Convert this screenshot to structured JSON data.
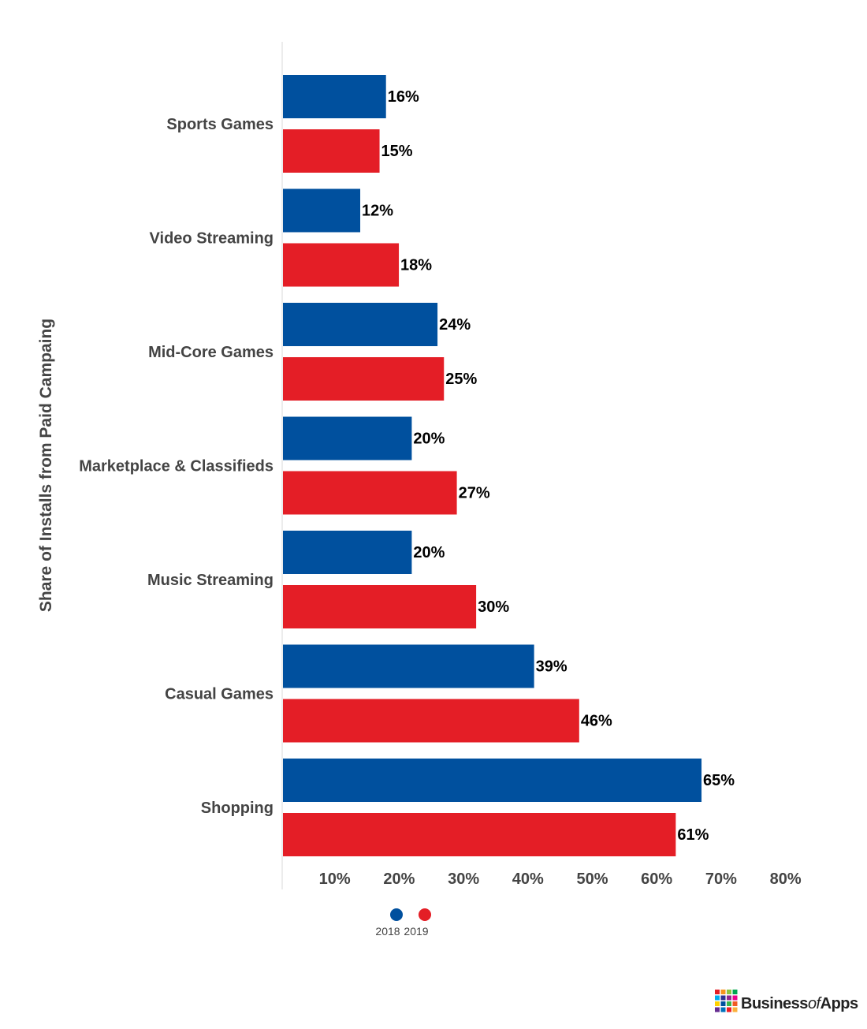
{
  "chart_data": {
    "type": "bar",
    "orientation": "horizontal",
    "categories": [
      "Sports Games",
      "Video Streaming",
      "Mid-Core Games",
      "Marketplace & Classifieds",
      "Music Streaming",
      "Casual Games",
      "Shopping"
    ],
    "series": [
      {
        "name": "2018",
        "color": "#00509e",
        "values": [
          16,
          12,
          24,
          20,
          20,
          39,
          65
        ]
      },
      {
        "name": "2019",
        "color": "#e41e26",
        "values": [
          15,
          18,
          25,
          27,
          30,
          46,
          61
        ]
      }
    ],
    "value_labels": {
      "2018": [
        "16%",
        "12%",
        "24%",
        "20%",
        "20%",
        "39%",
        "65%"
      ],
      "2019": [
        "15%",
        "18%",
        "25%",
        "27%",
        "30%",
        "46%",
        "61%"
      ]
    },
    "ylabel": "Share of Installs from Paid Campaing",
    "xlabel": "",
    "xlim": [
      0,
      80
    ],
    "xticks": [
      "10%",
      "20%",
      "30%",
      "40%",
      "50%",
      "60%",
      "70%",
      "80%"
    ],
    "grid": false,
    "legend_position": "bottom"
  },
  "brand": {
    "prefix": "Business",
    "middle": "of",
    "suffix": "Apps",
    "colors": [
      "#e41e26",
      "#f7941d",
      "#8dc63f",
      "#00a651",
      "#00aeef",
      "#2e3192",
      "#92278f",
      "#ec008c",
      "#ffd200",
      "#00509e",
      "#39b54a",
      "#f15a24",
      "#662d91",
      "#0071bc",
      "#ed1c24",
      "#fbb03b"
    ]
  }
}
